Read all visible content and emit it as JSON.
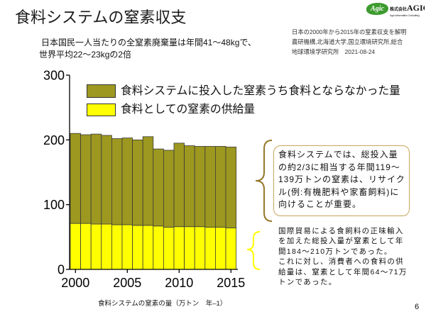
{
  "slide": {
    "title": "食料システムの窒素収支",
    "headline": [
      "日本国民一人当たりの全窒素廃棄量は年間41～48kgで、",
      "世界平均22～23kgの2倍"
    ],
    "source": [
      "日本の2000年から2015年の窒素収支を解明",
      "農研機構,北海道大学,国立環境研究所,総合",
      "地球環境学研究所　2021-08-24"
    ],
    "page_number": "6"
  },
  "logo": {
    "mark": "Agic",
    "company_prefix": "株式会社",
    "company_name": "AGIC",
    "tagline": "Agro-information Consulting",
    "color": "#3d9b2f"
  },
  "annotations": {
    "recycle_note": [
      "食料システムでは、総投入量",
      "の約2/3に相当する年間119～",
      "139万トンの窒素は、リサイク",
      "ル(例:有機肥料や家畜飼料)に",
      "向けることが重要。"
    ],
    "supply_note": [
      "国際貿易による食飼料の正味輸入",
      "を加えた総投入量が窒素として年",
      "間184～210万トンであった。",
      "これに対し、消費者への食料の供",
      "給量は、窒素として年間64～71万",
      "トンであった。"
    ],
    "recycle_brace_color": "#96782c",
    "supply_brace_color": "#ffff00",
    "box_border_color": "#c9a55a"
  },
  "chart_data": {
    "type": "bar",
    "stacked": true,
    "x": [
      2000,
      2001,
      2002,
      2003,
      2004,
      2005,
      2006,
      2007,
      2008,
      2009,
      2010,
      2011,
      2012,
      2013,
      2014,
      2015
    ],
    "series": [
      {
        "name": "食料としての窒素の供給量",
        "color": "#ffff00",
        "values": [
          71,
          71,
          70,
          70,
          69,
          69,
          68,
          68,
          67,
          65,
          66,
          66,
          66,
          65,
          65,
          64
        ]
      },
      {
        "name": "食料システムに投入した窒素うち食料とならなかった量",
        "color": "#9d981f",
        "values": [
          139,
          137,
          139,
          137,
          133,
          134,
          132,
          137,
          119,
          119,
          129,
          125,
          124,
          125,
          125,
          125
        ]
      }
    ],
    "xlabel": "食料システムの窒素の量（万トン　年–1）",
    "ylim": [
      0,
      300
    ],
    "yticks": [
      0,
      100,
      200,
      300
    ],
    "xticks": [
      2000,
      2005,
      2010,
      2015
    ],
    "grid": false,
    "legend": "top-left"
  }
}
